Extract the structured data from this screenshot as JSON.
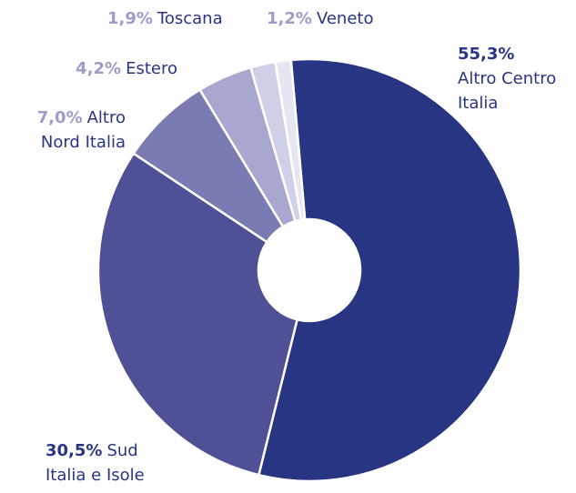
{
  "chart_data": {
    "type": "donut",
    "categories": [
      "Altro Centro Italia",
      "Sud Italia e Isole",
      "Altro Nord Italia",
      "Estero",
      "Toscana",
      "Veneto"
    ],
    "values": [
      55.3,
      30.5,
      7.0,
      4.2,
      1.9,
      1.2
    ],
    "value_labels": [
      "55,3%",
      "30,5%",
      "7,0%",
      "4,2%",
      "1,9%",
      "1,2%"
    ],
    "colors": [
      "#283583",
      "#505096",
      "#7b7bb3",
      "#a7a7cf",
      "#cfd0e8",
      "#e6e6f3"
    ]
  }
}
